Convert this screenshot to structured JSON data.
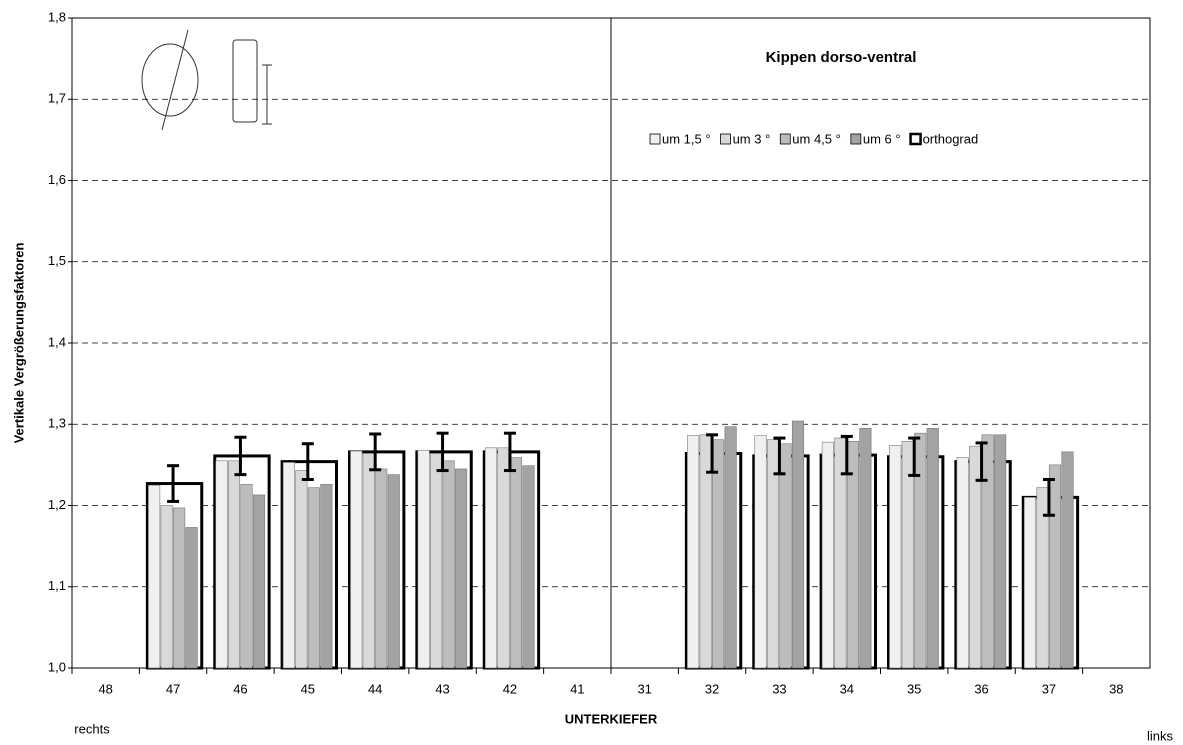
{
  "chart_data": {
    "type": "bar",
    "title": "Kippen dorso-ventral",
    "y_label": "Vertikale Vergrößerungsfaktoren",
    "x_label": "UNTERKIEFER",
    "left_note": "rechts",
    "right_note": "links",
    "categories": [
      "48",
      "47",
      "46",
      "45",
      "44",
      "43",
      "42",
      "41",
      "31",
      "32",
      "33",
      "34",
      "35",
      "36",
      "37",
      "38"
    ],
    "series": [
      {
        "name": "um 1,5 °",
        "color": "#f0f0f0",
        "values": [
          null,
          1.225,
          1.255,
          1.253,
          1.267,
          1.268,
          1.271,
          null,
          null,
          1.286,
          1.286,
          1.278,
          1.274,
          1.259,
          1.21,
          null
        ]
      },
      {
        "name": "um 3 °",
        "color": "#d9d9d9",
        "values": [
          null,
          1.2,
          1.255,
          1.243,
          1.264,
          1.264,
          1.271,
          null,
          null,
          1.287,
          1.281,
          1.283,
          1.279,
          1.273,
          1.222,
          null
        ]
      },
      {
        "name": "um 4,5 °",
        "color": "#bdbdbd",
        "values": [
          null,
          1.197,
          1.226,
          1.222,
          1.245,
          1.255,
          1.259,
          null,
          null,
          1.281,
          1.276,
          1.279,
          1.289,
          1.287,
          1.25,
          null
        ]
      },
      {
        "name": "um 6 °",
        "color": "#a3a3a3",
        "values": [
          null,
          1.173,
          1.213,
          1.226,
          1.238,
          1.245,
          1.249,
          null,
          null,
          1.297,
          1.304,
          1.295,
          1.295,
          1.287,
          1.266,
          null
        ]
      },
      {
        "name": "orthograd",
        "color": "#000000",
        "values": [
          null,
          1.227,
          1.261,
          1.254,
          1.266,
          1.266,
          1.266,
          null,
          null,
          1.264,
          1.261,
          1.262,
          1.26,
          1.254,
          1.21,
          null
        ],
        "errors": [
          null,
          0.022,
          0.023,
          0.022,
          0.022,
          0.023,
          0.023,
          null,
          null,
          0.023,
          0.022,
          0.023,
          0.023,
          0.023,
          0.022,
          null
        ]
      }
    ],
    "ylim": [
      1.0,
      1.8
    ],
    "yticks": [
      {
        "value": 1.0,
        "label": "1,0"
      },
      {
        "value": 1.1,
        "label": "1,1"
      },
      {
        "value": 1.2,
        "label": "1,2"
      },
      {
        "value": 1.3,
        "label": "1,3"
      },
      {
        "value": 1.4,
        "label": "1,4"
      },
      {
        "value": 1.5,
        "label": "1,5"
      },
      {
        "value": 1.6,
        "label": "1,6"
      },
      {
        "value": 1.7,
        "label": "1,7"
      },
      {
        "value": 1.8,
        "label": "1,8"
      }
    ],
    "grid": true,
    "legend": "top-right"
  }
}
